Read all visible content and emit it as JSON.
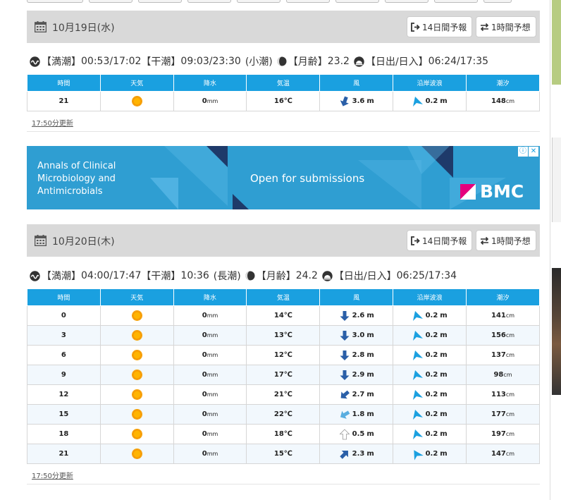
{
  "days": [
    {
      "date": "10月19日(水)",
      "btn14": "14日間予報",
      "btn1h": "1時間予想",
      "tide": {
        "high_label": "【満潮】",
        "high": "00:53/17:02",
        "low_label": "【干潮】",
        "low": "09:03/23:30",
        "tide_type": "(小潮)",
        "moon_label": "【月齢】",
        "moon": "23.2",
        "sun_label": "【日出/日入】",
        "sun": "06:24/17:35"
      },
      "updated": "17:50分更新",
      "rows": [
        {
          "time": "21",
          "rain": "0",
          "temp": "16",
          "wind": "3.6",
          "wave": "0.2",
          "tide": "148"
        }
      ]
    },
    {
      "date": "10月20日(木)",
      "btn14": "14日間予報",
      "btn1h": "1時間予想",
      "tide": {
        "high_label": "【満潮】",
        "high": "04:00/17:47",
        "low_label": "【干潮】",
        "low": "10:36",
        "tide_type": "(長潮)",
        "moon_label": "【月齢】",
        "moon": "24.2",
        "sun_label": "【日出/日入】",
        "sun": "06:25/17:34"
      },
      "updated": "17:50分更新",
      "rows": [
        {
          "time": "0",
          "rain": "0",
          "temp": "14",
          "wind": "2.6",
          "wave": "0.2",
          "tide": "141"
        },
        {
          "time": "3",
          "rain": "0",
          "temp": "13",
          "wind": "3.0",
          "wave": "0.2",
          "tide": "156"
        },
        {
          "time": "6",
          "rain": "0",
          "temp": "12",
          "wind": "2.8",
          "wave": "0.2",
          "tide": "137"
        },
        {
          "time": "9",
          "rain": "0",
          "temp": "17",
          "wind": "2.9",
          "wave": "0.2",
          "tide": "98"
        },
        {
          "time": "12",
          "rain": "0",
          "temp": "21",
          "wind": "2.7",
          "wave": "0.2",
          "tide": "113"
        },
        {
          "time": "15",
          "rain": "0",
          "temp": "22",
          "wind": "1.8",
          "wave": "0.2",
          "tide": "177"
        },
        {
          "time": "18",
          "rain": "0",
          "temp": "18",
          "wind": "0.5",
          "wave": "0.2",
          "tide": "197"
        },
        {
          "time": "21",
          "rain": "0",
          "temp": "15",
          "wind": "2.3",
          "wave": "0.2",
          "tide": "147"
        }
      ]
    }
  ],
  "columns": [
    "時間",
    "天気",
    "降水",
    "気温",
    "風",
    "沿岸波浪",
    "潮汐"
  ],
  "units": {
    "rain": "mm",
    "temp": "℃",
    "wind": "m",
    "wave": "m",
    "tide": "cm"
  },
  "ad": {
    "journal_line1": "Annals of Clinical",
    "journal_line2": "Microbiology and",
    "journal_line3": "Antimicrobials",
    "cta": "Open for submissions",
    "brand": "BMC"
  },
  "colors": {
    "header_blue": "#1aa0e0",
    "day_header": "#d9d9d9",
    "ad_bg": "#2f9ed2",
    "sun": "#f7a400"
  }
}
